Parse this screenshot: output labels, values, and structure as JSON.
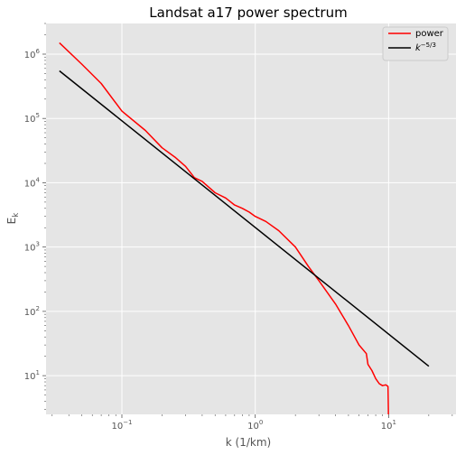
{
  "chart_data": {
    "type": "line",
    "title": "Landsat a17 power spectrum",
    "xlabel": "k (1/km)",
    "ylabel": "E_k",
    "xscale": "log",
    "yscale": "log",
    "xlim": [
      0.027,
      32
    ],
    "ylim": [
      2.5,
      3000000
    ],
    "grid": true,
    "legend_position": "top-right",
    "x_ticks": [
      {
        "value": 0.1,
        "base": "10",
        "exp": "−1"
      },
      {
        "value": 1,
        "base": "10",
        "exp": "0"
      },
      {
        "value": 10,
        "base": "10",
        "exp": "1"
      }
    ],
    "y_ticks": [
      {
        "value": 10,
        "base": "10",
        "exp": "1"
      },
      {
        "value": 100,
        "base": "10",
        "exp": "2"
      },
      {
        "value": 1000,
        "base": "10",
        "exp": "3"
      },
      {
        "value": 10000,
        "base": "10",
        "exp": "4"
      },
      {
        "value": 100000,
        "base": "10",
        "exp": "5"
      },
      {
        "value": 1000000,
        "base": "10",
        "exp": "6"
      }
    ],
    "series": [
      {
        "name": "power",
        "color": "#ff0000",
        "x": [
          0.034,
          0.05,
          0.07,
          0.1,
          0.15,
          0.2,
          0.25,
          0.3,
          0.35,
          0.4,
          0.5,
          0.6,
          0.7,
          0.8,
          0.9,
          1.0,
          1.2,
          1.5,
          2.0,
          2.5,
          3.0,
          4.0,
          5.0,
          6.0,
          6.8,
          7.0,
          7.5,
          8.0,
          8.5,
          9.0,
          9.5,
          9.9,
          9.95,
          10.0
        ],
        "y": [
          1500000,
          700000,
          350000,
          130000,
          65000,
          35000,
          25000,
          18000,
          12000,
          10500,
          7000,
          5800,
          4500,
          4000,
          3500,
          3000,
          2500,
          1800,
          1000,
          500,
          300,
          130,
          60,
          30,
          22,
          15,
          12,
          9,
          7.5,
          7,
          7.2,
          6.8,
          3,
          1
        ]
      },
      {
        "name": "k^{-5/3}",
        "color": "#000000",
        "x": [
          0.034,
          20
        ],
        "y": [
          550000,
          14
        ]
      }
    ]
  }
}
